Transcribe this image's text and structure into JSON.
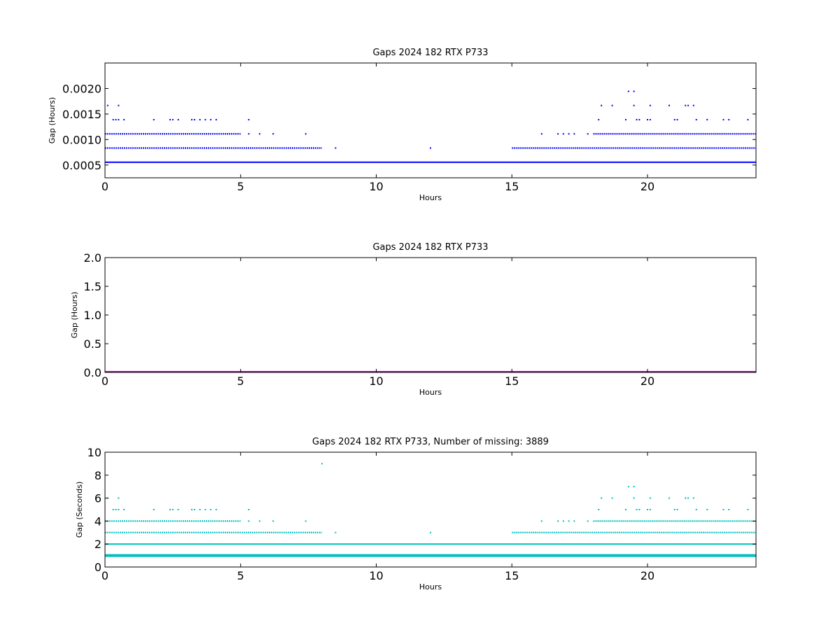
{
  "chart_data": [
    {
      "type": "scatter",
      "title": "Gaps 2024 182 RTX  P733",
      "xlabel": "Hours",
      "ylabel": "Gap (Hours)",
      "xlim": [
        0,
        24
      ],
      "ylim": [
        0.00025,
        0.0025
      ],
      "xticks": [
        "0",
        "5",
        "10",
        "15",
        "20"
      ],
      "yticks": [
        "0.0005",
        "0.0010",
        "0.0015",
        "0.0020"
      ],
      "color": "#0000ff",
      "grid": false,
      "series": [
        {
          "band_levels": [
            0.000278,
            0.000556,
            0.000833,
            0.001111,
            0.001389,
            0.001667,
            0.001944
          ],
          "continuous_levels": [
            0.000278,
            0.000556
          ],
          "level_points": [
            {
              "y": 0.000833,
              "x_ranges": [
                [
                  0.0,
                  8.0
                ],
                [
                  15.0,
                  24.0
                ]
              ],
              "x_points": [
                8.5,
                12.0
              ]
            },
            {
              "y": 0.000556,
              "x_ranges": [
                [
                  0.0,
                  24.0
                ]
              ],
              "x_points": []
            },
            {
              "y": 0.001111,
              "x_ranges": [
                [
                  0.0,
                  5.0
                ],
                [
                  18.0,
                  24.0
                ]
              ],
              "x_points": [
                5.3,
                5.7,
                6.2,
                7.4,
                16.1,
                16.7,
                16.9,
                17.1,
                17.3,
                17.8
              ]
            },
            {
              "y": 0.001389,
              "x_ranges": [],
              "x_points": [
                0.3,
                0.4,
                0.5,
                0.7,
                1.8,
                2.4,
                2.5,
                2.7,
                3.2,
                3.3,
                3.5,
                3.7,
                3.9,
                4.1,
                5.3,
                18.2,
                19.2,
                19.6,
                19.7,
                20.0,
                20.1,
                21.0,
                21.1,
                21.8,
                22.2,
                22.8,
                23.0,
                23.7
              ]
            },
            {
              "y": 0.001667,
              "x_ranges": [],
              "x_points": [
                0.1,
                0.5,
                18.3,
                18.7,
                19.5,
                20.1,
                20.8,
                21.4,
                21.5,
                21.7
              ]
            },
            {
              "y": 0.001944,
              "x_ranges": [],
              "x_points": [
                19.3,
                19.5
              ]
            }
          ]
        }
      ]
    },
    {
      "type": "line",
      "title": "Gaps 2024 182 RTX  P733",
      "xlabel": "Hours",
      "ylabel": "Gap (Hours)",
      "xlim": [
        0,
        24
      ],
      "ylim": [
        0,
        2.0
      ],
      "xticks": [
        "0",
        "5",
        "10",
        "15",
        "20"
      ],
      "yticks": [
        "0.0",
        "0.5",
        "1.0",
        "1.5",
        "2.0"
      ],
      "color": "#bf00bf",
      "grid": false,
      "series": [
        {
          "x": [
            0,
            24
          ],
          "values": [
            0,
            0
          ]
        }
      ]
    },
    {
      "type": "scatter",
      "title": "Gaps 2024 182 RTX  P733, Number of missing: 3889",
      "xlabel": "Hours",
      "ylabel": "Gap (Seconds)",
      "xlim": [
        0,
        24
      ],
      "ylim": [
        0,
        10
      ],
      "xticks": [
        "0",
        "5",
        "10",
        "15",
        "20"
      ],
      "yticks": [
        "0",
        "2",
        "4",
        "6",
        "8",
        "10"
      ],
      "color": "#00bfbf",
      "grid": false,
      "series": [
        {
          "continuous_levels": [
            1,
            2
          ],
          "level_points": [
            {
              "y": 1,
              "x_ranges": [
                [
                  0.0,
                  24.0
                ]
              ],
              "x_points": []
            },
            {
              "y": 2,
              "x_ranges": [
                [
                  0.0,
                  24.0
                ]
              ],
              "x_points": []
            },
            {
              "y": 3,
              "x_ranges": [
                [
                  0.0,
                  8.0
                ],
                [
                  15.0,
                  24.0
                ]
              ],
              "x_points": [
                8.5,
                12.0
              ]
            },
            {
              "y": 4,
              "x_ranges": [
                [
                  0.0,
                  5.0
                ],
                [
                  18.0,
                  24.0
                ]
              ],
              "x_points": [
                5.3,
                5.7,
                6.2,
                7.4,
                16.1,
                16.7,
                16.9,
                17.1,
                17.3,
                17.8
              ]
            },
            {
              "y": 5,
              "x_ranges": [],
              "x_points": [
                0.3,
                0.4,
                0.5,
                0.7,
                1.8,
                2.4,
                2.5,
                2.7,
                3.2,
                3.3,
                3.5,
                3.7,
                3.9,
                4.1,
                5.3,
                18.2,
                19.2,
                19.6,
                19.7,
                20.0,
                20.1,
                21.0,
                21.1,
                21.8,
                22.2,
                22.8,
                23.0,
                23.7
              ]
            },
            {
              "y": 6,
              "x_ranges": [],
              "x_points": [
                0.1,
                0.5,
                18.3,
                18.7,
                19.5,
                20.1,
                20.8,
                21.4,
                21.5,
                21.7
              ]
            },
            {
              "y": 7,
              "x_ranges": [],
              "x_points": [
                19.3,
                19.5
              ]
            },
            {
              "y": 9,
              "x_ranges": [],
              "x_points": [
                8.0
              ]
            }
          ]
        }
      ]
    }
  ]
}
